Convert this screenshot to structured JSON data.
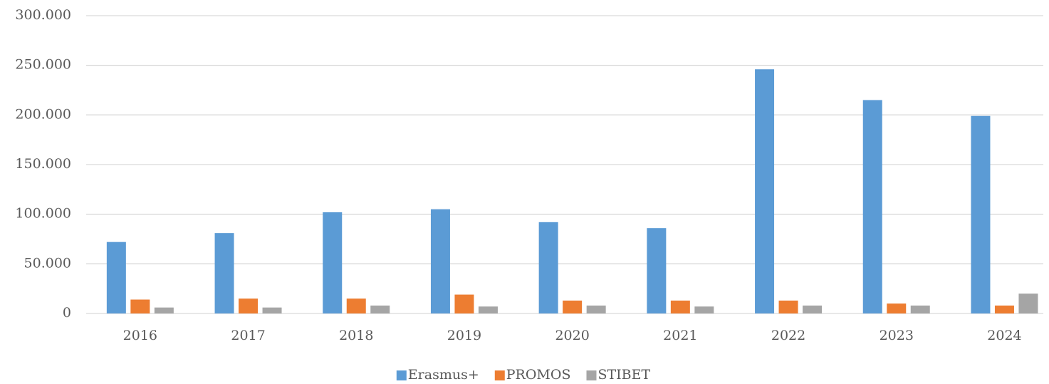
{
  "chart_data": {
    "type": "bar",
    "categories": [
      "2016",
      "2017",
      "2018",
      "2019",
      "2020",
      "2021",
      "2022",
      "2023",
      "2024"
    ],
    "series": [
      {
        "name": "Erasmus+",
        "color": "#5b9bd5",
        "values": [
          72000,
          81000,
          102000,
          105000,
          92000,
          86000,
          246000,
          215000,
          199000
        ]
      },
      {
        "name": "PROMOS",
        "color": "#ed7d31",
        "values": [
          14000,
          15000,
          15000,
          19000,
          13000,
          13000,
          13000,
          10000,
          8000
        ]
      },
      {
        "name": "STIBET",
        "color": "#a5a5a5",
        "values": [
          6000,
          6000,
          8000,
          7000,
          8000,
          7000,
          8000,
          8000,
          20000
        ]
      }
    ],
    "ylim": [
      0,
      300000
    ],
    "yticks": [
      0,
      {
        "value": 50000,
        "label": "50.000"
      },
      {
        "value": 100000,
        "label": "100.000"
      },
      {
        "value": 150000,
        "label": "150.000"
      },
      {
        "value": 200000,
        "label": "200.000"
      },
      {
        "value": 250000,
        "label": "250.000"
      },
      {
        "value": 300000,
        "label": "300.000"
      }
    ],
    "grid": true,
    "legend": "bottom"
  }
}
